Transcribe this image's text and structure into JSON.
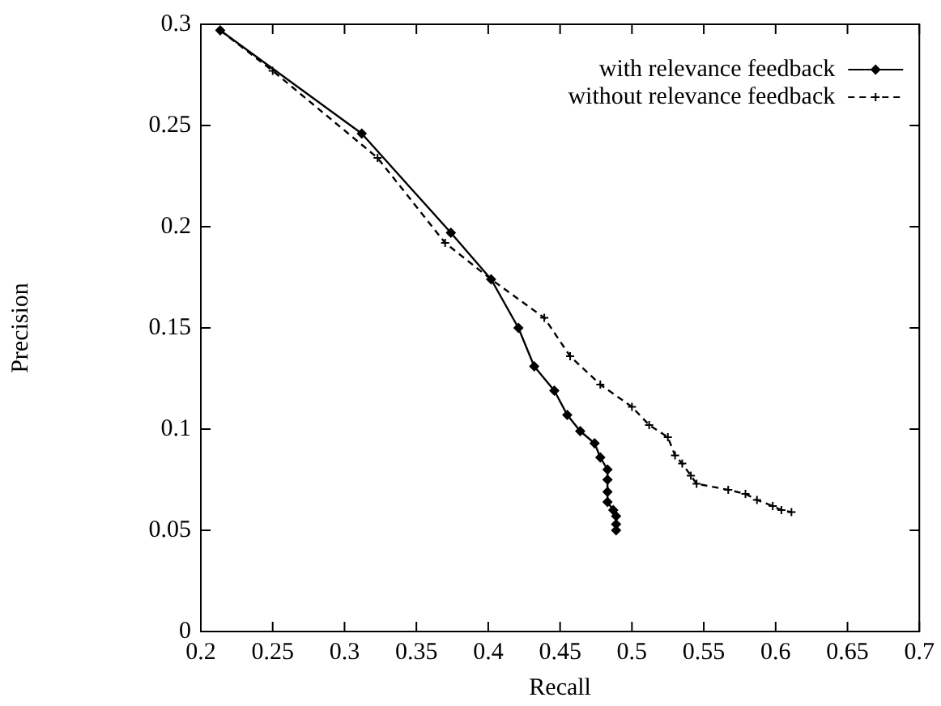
{
  "chart_data": {
    "type": "line",
    "xlabel": "Recall",
    "ylabel": "Precision",
    "xlim": [
      0.2,
      0.7
    ],
    "xticks": [
      0.2,
      0.25,
      0.3,
      0.35,
      0.4,
      0.45,
      0.5,
      0.55,
      0.6,
      0.65,
      0.7
    ],
    "ylim": [
      0,
      0.3
    ],
    "yticks": [
      0,
      0.05,
      0.1,
      0.15,
      0.2,
      0.25,
      0.3
    ],
    "grid": false,
    "legend": "top right",
    "series": [
      {
        "name": "with relevance feedback",
        "color": "#000000",
        "marker": "diamond",
        "line_style": "solid",
        "x": [
          0.2135,
          0.312,
          0.374,
          0.402,
          0.421,
          0.432,
          0.446,
          0.455,
          0.464,
          0.474,
          0.478,
          0.483,
          0.483,
          0.483,
          0.483,
          0.487,
          0.489,
          0.489,
          0.489
        ],
        "values": [
          0.297,
          0.246,
          0.197,
          0.174,
          0.15,
          0.131,
          0.119,
          0.107,
          0.099,
          0.093,
          0.086,
          0.08,
          0.075,
          0.069,
          0.064,
          0.06,
          0.057,
          0.053,
          0.05
        ]
      },
      {
        "name": "without relevance feedback",
        "color": "#000000",
        "marker": "cross",
        "line_style": "dashed",
        "x": [
          0.2135,
          0.25,
          0.323,
          0.37,
          0.402,
          0.439,
          0.457,
          0.478,
          0.5,
          0.512,
          0.525,
          0.53,
          0.535,
          0.541,
          0.545,
          0.567,
          0.579,
          0.587,
          0.598,
          0.604,
          0.611
        ],
        "values": [
          0.297,
          0.277,
          0.234,
          0.192,
          0.174,
          0.155,
          0.136,
          0.122,
          0.111,
          0.102,
          0.096,
          0.087,
          0.083,
          0.077,
          0.073,
          0.07,
          0.068,
          0.065,
          0.062,
          0.06,
          0.059
        ]
      }
    ]
  }
}
